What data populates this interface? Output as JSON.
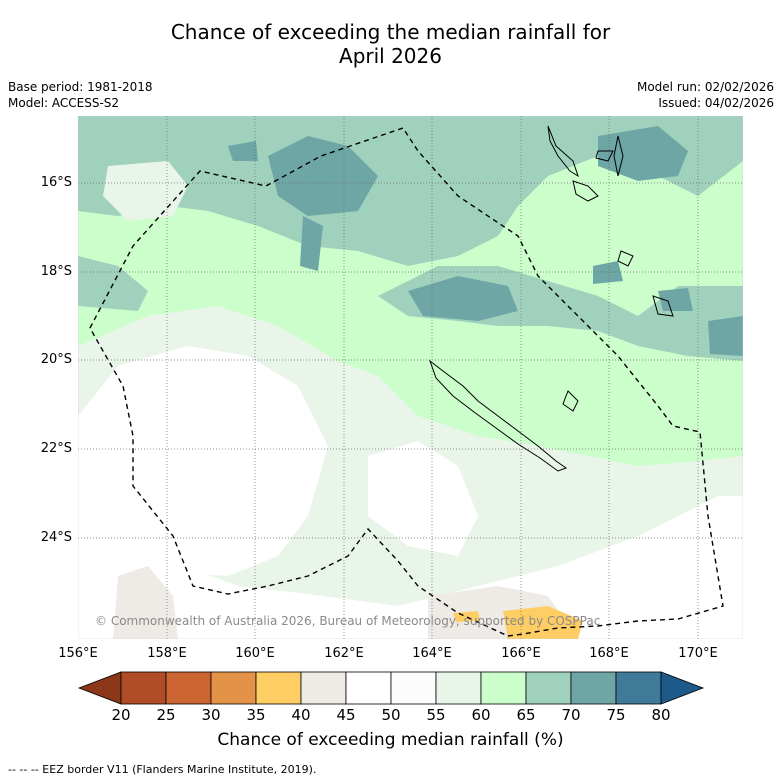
{
  "title": {
    "line1": "Chance of exceeding the median rainfall for",
    "line2": "April 2026"
  },
  "meta_left": {
    "base_period": "Base period: 1981-2018",
    "model": "Model: ACCESS-S2"
  },
  "meta_right": {
    "model_run": "Model run: 02/02/2026",
    "issued": "Issued: 04/02/2026"
  },
  "axes": {
    "lat_labels": [
      "16°S",
      "18°S",
      "20°S",
      "22°S",
      "24°S"
    ],
    "lon_labels": [
      "156°E",
      "158°E",
      "160°E",
      "162°E",
      "164°E",
      "166°E",
      "168°E",
      "170°E"
    ]
  },
  "copyright": "© Commonwealth of Australia 2026, Bureau of Meteorology, supported by COSPPac",
  "colorbar": {
    "ticks": [
      "20",
      "25",
      "30",
      "35",
      "40",
      "45",
      "50",
      "55",
      "60",
      "65",
      "70",
      "75",
      "80"
    ],
    "colors": [
      "#8c3818",
      "#b14d26",
      "#cd6532",
      "#e39348",
      "#fecd64",
      "#eeeae6",
      "#ffffff",
      "#fcfcfc",
      "#e9f5e8",
      "#ccfecc",
      "#9fd1bd",
      "#6ea6a6",
      "#3f7b99",
      "#1d5a8a"
    ],
    "label": "Chance of exceeding median rainfall (%)"
  },
  "footnote": "-- -- -- EEZ border V11 (Flanders Marine Institute, 2019)."
}
